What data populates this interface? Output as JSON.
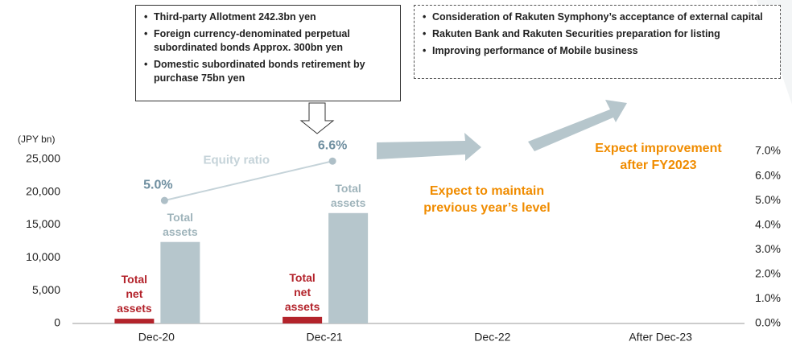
{
  "chart_data": {
    "type": "bar",
    "y_label": "(JPY bn)",
    "categories": [
      "Dec-20",
      "Dec-21",
      "Dec-22",
      "After Dec-23"
    ],
    "series": [
      {
        "name": "Total net assets",
        "color": "#b3232b",
        "values": [
          720,
          1000,
          null,
          null
        ]
      },
      {
        "name": "Total assets",
        "color": "#b6c6cc",
        "values": [
          12400,
          16800,
          null,
          null
        ]
      },
      {
        "name": "Equity ratio",
        "type": "line",
        "axis": "y2",
        "color": "#c5d3d9",
        "label_color": "#6f8fa0",
        "values": [
          5.0,
          6.6,
          null,
          null
        ],
        "value_labels": [
          "5.0%",
          "6.6%",
          null,
          null
        ]
      }
    ],
    "ylim": [
      0,
      26200
    ],
    "yticks": [
      0,
      {
        "value": 5000,
        "label": "5,000"
      },
      {
        "value": 10000,
        "label": "10,000"
      },
      {
        "value": 15000,
        "label": "15,000"
      },
      {
        "value": 20000,
        "label": "20,000"
      },
      {
        "value": 25000,
        "label": "25,000"
      }
    ],
    "y2lim": [
      0,
      7
    ],
    "y2ticks": [
      {
        "value": 0,
        "label": "0.0%"
      },
      {
        "value": 1,
        "label": "1.0%"
      },
      {
        "value": 2,
        "label": "2.0%"
      },
      {
        "value": 3,
        "label": "3.0%"
      },
      {
        "value": 4,
        "label": "4.0%"
      },
      {
        "value": 5,
        "label": "5.0%"
      },
      {
        "value": 6,
        "label": "6.0%"
      },
      {
        "value": 7,
        "label": "7.0%"
      }
    ],
    "callout_left": [
      "Third-party Allotment 242.3bn yen",
      "Foreign currency-denominated perpetual subordinated bonds Approx. 300bn yen",
      "Domestic subordinated bonds retirement by purchase 75bn yen"
    ],
    "callout_right": [
      "Consideration of Rakuten Symphony’s acceptance of external capital",
      "Rakuten Bank and Rakuten Securities preparation for listing",
      "Improving performance of Mobile business"
    ],
    "arrow_labels": [
      "Expect to maintain previous year’s level",
      "Expect improvement after FY2023"
    ]
  }
}
